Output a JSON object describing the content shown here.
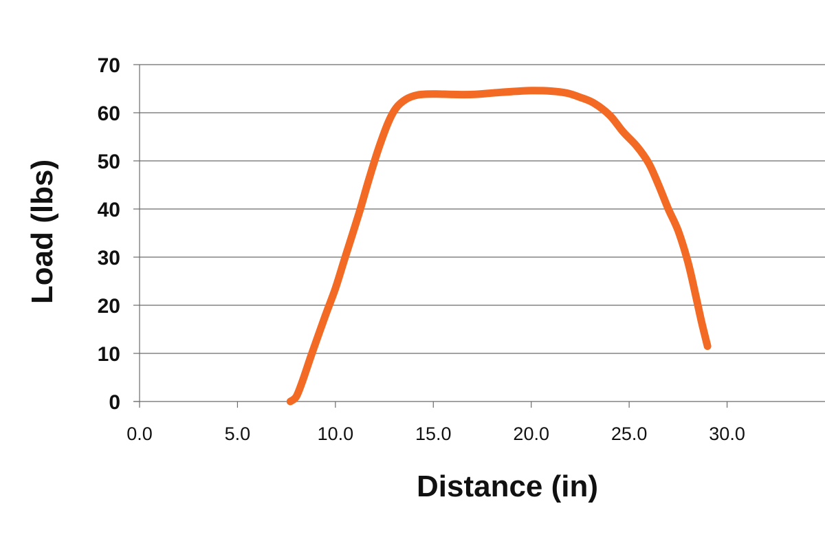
{
  "chart_data": {
    "type": "line",
    "title": "",
    "xlabel": "Distance (in)",
    "ylabel": "Load (lbs)",
    "xlim": [
      0,
      35
    ],
    "ylim": [
      0,
      70
    ],
    "x_ticks": [
      0,
      5,
      10,
      15,
      20,
      25,
      30
    ],
    "x_tick_labels": [
      "0.0",
      "5.0",
      "10.0",
      "15.0",
      "20.0",
      "25.0",
      "30.0"
    ],
    "y_ticks": [
      0,
      10,
      20,
      30,
      40,
      50,
      60,
      70
    ],
    "y_tick_labels": [
      "0",
      "10",
      "20",
      "30",
      "40",
      "50",
      "60",
      "70"
    ],
    "grid": "horizontal",
    "legend": "none",
    "series_color": "#f26a24",
    "series": [
      {
        "x": [
          7.7,
          8.0,
          8.3,
          8.8,
          9.5,
          10.0,
          10.5,
          11.2,
          11.7,
          12.2,
          12.7,
          13.1,
          13.6,
          14.2,
          15.0,
          16.0,
          17.0,
          18.0,
          19.0,
          20.0,
          21.0,
          21.8,
          22.5,
          23.2,
          24.0,
          24.7,
          25.4,
          26.0,
          26.5,
          27.0,
          27.5,
          28.0,
          28.4,
          28.7,
          29.0
        ],
        "y": [
          0,
          1,
          4,
          10,
          18,
          23.5,
          30,
          39,
          46,
          52.5,
          58,
          61,
          62.8,
          63.7,
          63.9,
          63.8,
          63.8,
          64.1,
          64.4,
          64.6,
          64.5,
          64.1,
          63.2,
          62,
          59.5,
          56,
          53,
          49.5,
          45,
          40,
          35.5,
          29,
          22,
          16.5,
          11.5
        ]
      }
    ]
  }
}
